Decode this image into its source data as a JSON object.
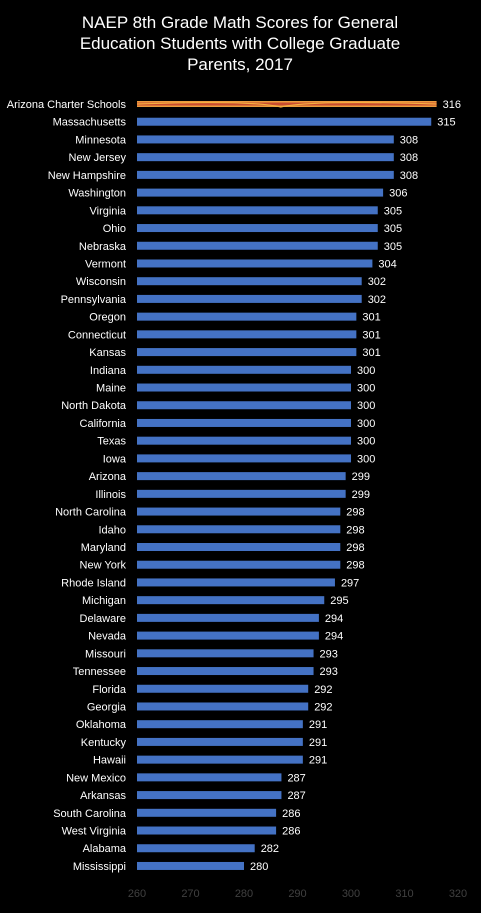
{
  "chart_data": {
    "type": "bar",
    "orientation": "horizontal",
    "title_lines": [
      "NAEP 8th Grade Math Scores for General",
      "Education Students with College Graduate",
      "Parents, 2017"
    ],
    "categories": [
      "Arizona Charter Schools",
      "Massachusetts",
      "Minnesota",
      "New Jersey",
      "New Hampshire",
      "Washington",
      "Virginia",
      "Ohio",
      "Nebraska",
      "Vermont",
      "Wisconsin",
      "Pennsylvania",
      "Oregon",
      "Connecticut",
      "Kansas",
      "Indiana",
      "Maine",
      "North Dakota",
      "California",
      "Texas",
      "Iowa",
      "Arizona",
      "Illinois",
      "North Carolina",
      "Idaho",
      "Maryland",
      "New York",
      "Rhode Island",
      "Michigan",
      "Delaware",
      "Nevada",
      "Missouri",
      "Tennessee",
      "Florida",
      "Georgia",
      "Oklahoma",
      "Kentucky",
      "Hawaii",
      "New Mexico",
      "Arkansas",
      "South Carolina",
      "West Virginia",
      "Alabama",
      "Mississippi"
    ],
    "values": [
      316,
      315,
      308,
      308,
      308,
      306,
      305,
      305,
      305,
      304,
      302,
      302,
      301,
      301,
      301,
      300,
      300,
      300,
      300,
      300,
      300,
      299,
      299,
      298,
      298,
      298,
      298,
      297,
      295,
      294,
      294,
      293,
      293,
      292,
      292,
      291,
      291,
      291,
      287,
      287,
      286,
      286,
      282,
      280
    ],
    "display_values": [
      316,
      315,
      308,
      308,
      308,
      306,
      305,
      305,
      305,
      304,
      302,
      302,
      301,
      301,
      301,
      300,
      300,
      300,
      300,
      300,
      300,
      299,
      299,
      298,
      298,
      298,
      298,
      297,
      295,
      294,
      294,
      293,
      293,
      292,
      292,
      291,
      291,
      291,
      287,
      287,
      286,
      286,
      282,
      280
    ],
    "xlim": [
      260,
      320
    ],
    "xticks": [
      260,
      270,
      280,
      290,
      300,
      310,
      320
    ],
    "highlight_category": "Arizona Charter Schools",
    "colors": {
      "background": "#000000",
      "bar": "#4472C4",
      "highlight_bar": "#C0392B",
      "highlight_glow": "#F5B041",
      "text": "#FFFFFF",
      "tick_text": "#404040"
    },
    "grid": false,
    "legend": "none"
  }
}
